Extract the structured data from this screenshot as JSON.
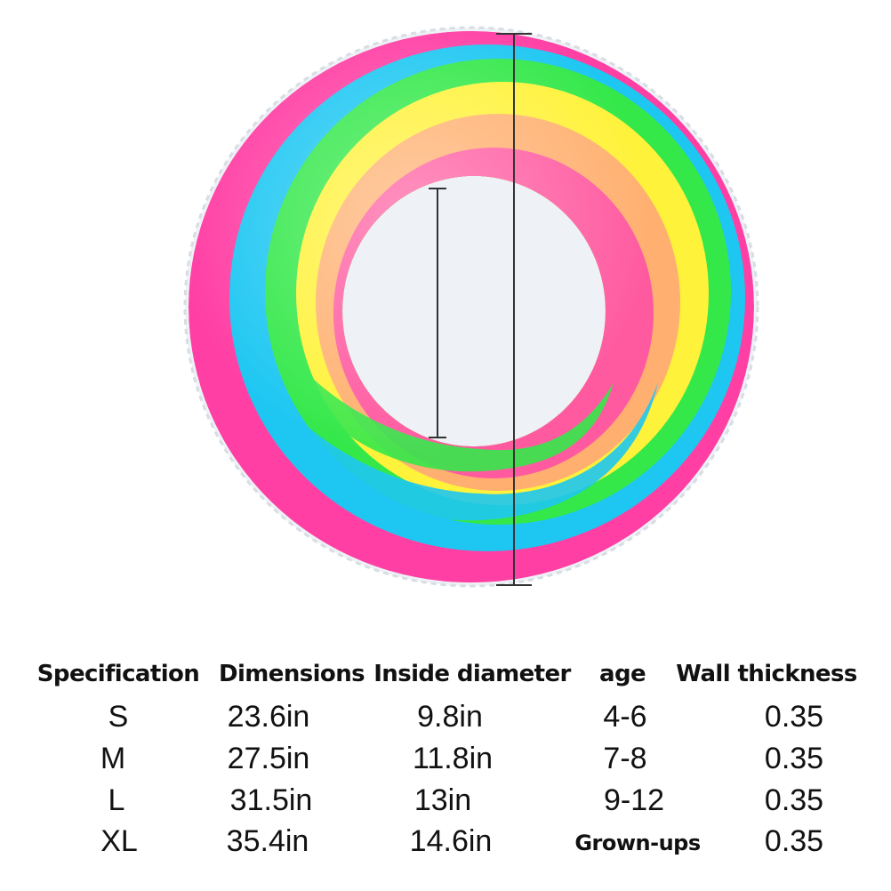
{
  "product_image": {
    "subject": "rainbow-swim-ring",
    "band_colors": [
      "#ff3fa4",
      "#1ec7f2",
      "#34e84a",
      "#fff23a",
      "#ffb070",
      "#ff5aa0"
    ],
    "measure_line_color": "#333333"
  },
  "spec_table": {
    "headers": [
      "Specification",
      "Dimensions",
      "Inside diameter",
      "age",
      "Wall thickness"
    ],
    "rows": [
      [
        "S",
        "23.6in",
        "9.8in",
        "4-6",
        "0.35"
      ],
      [
        "M",
        "27.5in",
        "11.8in",
        "7-8",
        "0.35"
      ],
      [
        "L",
        "31.5in",
        "13in",
        "9-12",
        "0.35"
      ],
      [
        "XL",
        "35.4in",
        "14.6in",
        "Grown-ups",
        "0.35"
      ]
    ]
  }
}
